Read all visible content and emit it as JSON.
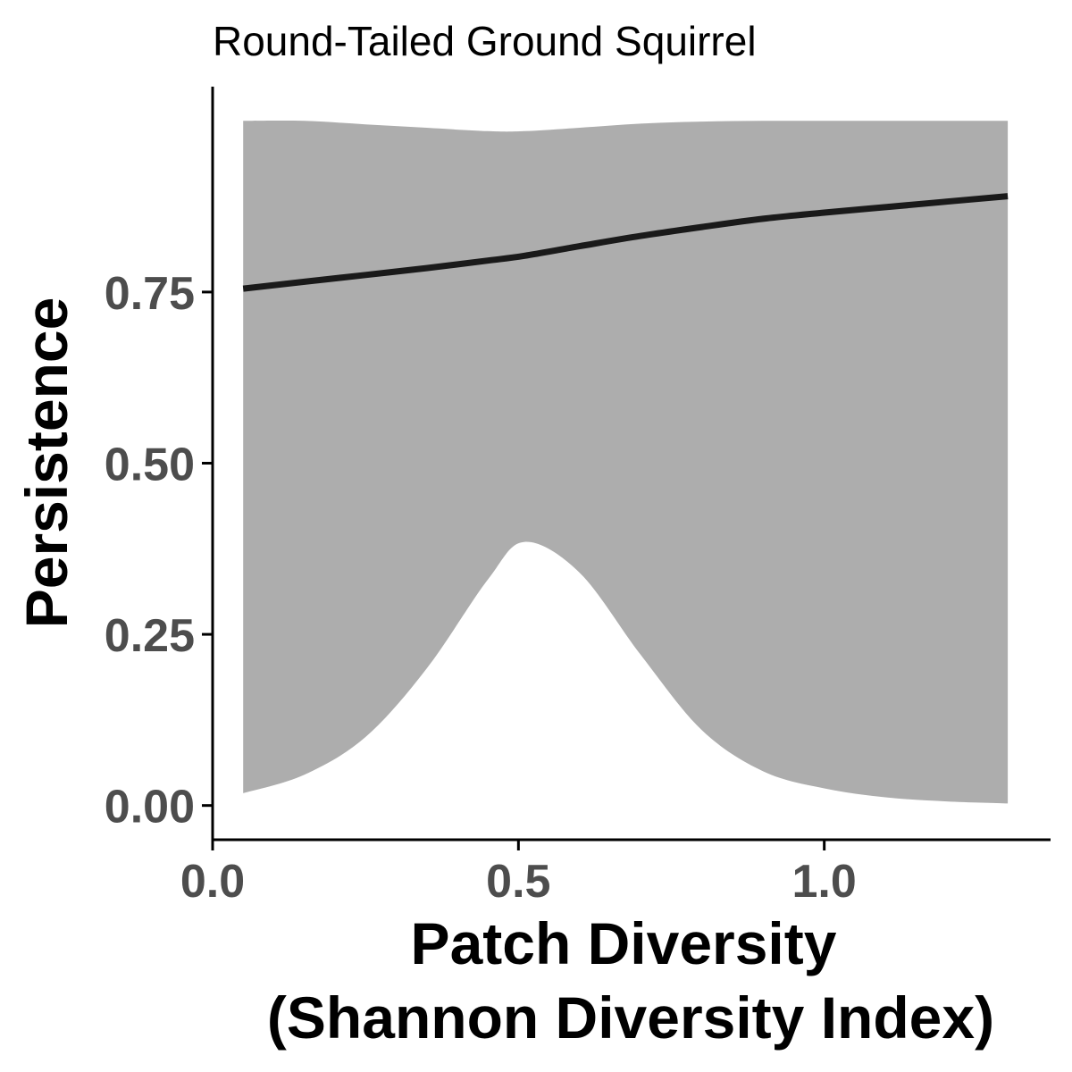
{
  "chart_data": {
    "type": "line",
    "title": "Round-Tailed Ground Squirrel",
    "xlabel_lines": [
      "Patch Diversity",
      "(Shannon Diversity Index)"
    ],
    "ylabel": "Persistence",
    "xlim": [
      0,
      1.37
    ],
    "ylim": [
      -0.05,
      1.05
    ],
    "x_ticks": [
      {
        "value": 0.0,
        "label": "0.0"
      },
      {
        "value": 0.5,
        "label": "0.5"
      },
      {
        "value": 1.0,
        "label": "1.0"
      }
    ],
    "y_ticks": [
      {
        "value": 0.0,
        "label": "0.00"
      },
      {
        "value": 0.25,
        "label": "0.25"
      },
      {
        "value": 0.5,
        "label": "0.50"
      },
      {
        "value": 0.75,
        "label": "0.75"
      }
    ],
    "grid": false,
    "series": [
      {
        "line_color": "#1a1a1a",
        "band_color": "#adadad",
        "x": [
          0.05,
          0.15,
          0.25,
          0.35,
          0.45,
          0.51,
          0.6,
          0.7,
          0.8,
          0.9,
          1.0,
          1.1,
          1.2,
          1.3
        ],
        "y": [
          0.755,
          0.765,
          0.775,
          0.785,
          0.796,
          0.803,
          0.817,
          0.832,
          0.845,
          0.857,
          0.866,
          0.874,
          0.882,
          0.89
        ],
        "lower": [
          0.018,
          0.045,
          0.1,
          0.2,
          0.33,
          0.385,
          0.34,
          0.22,
          0.11,
          0.05,
          0.025,
          0.012,
          0.006,
          0.003
        ],
        "upper": [
          1.0,
          1.0,
          0.995,
          0.99,
          0.985,
          0.985,
          0.99,
          0.996,
          0.999,
          1.0,
          1.0,
          1.0,
          1.0,
          1.0
        ]
      }
    ]
  }
}
